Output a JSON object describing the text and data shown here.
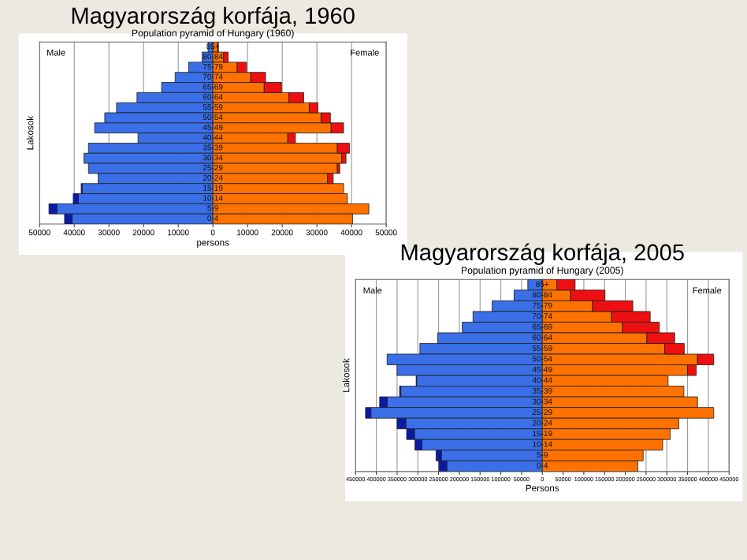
{
  "chart_data": [
    {
      "type": "bar",
      "orientation": "horizontal",
      "stacked": true,
      "title": "Magyarország korfája, 1960",
      "subtitle": "Population pyramid of Hungary (1960)",
      "xlabel": "persons",
      "ylabel": "Lakosok",
      "annotations": [
        "Male",
        "Female"
      ],
      "categories": [
        "85+",
        "80-84",
        "75-79",
        "70-74",
        "65-69",
        "60-64",
        "55-59",
        "50-54",
        "45-49",
        "40-44",
        "35-39",
        "30-34",
        "25-29",
        "20-24",
        "15-19",
        "10-14",
        "5-9",
        "0-4"
      ],
      "series": [
        {
          "color": "#3a6fe8",
          "values": [
            -1400,
            -3100,
            -7000,
            -10900,
            -14800,
            -21900,
            -27800,
            -31200,
            -34100,
            -21600,
            -35900,
            -37200,
            -35900,
            -33100,
            -37700,
            -38800,
            -45000,
            -40600
          ]
        },
        {
          "color": "#0a1aa8",
          "values": [
            null,
            null,
            null,
            null,
            null,
            null,
            null,
            null,
            null,
            null,
            null,
            null,
            null,
            null,
            -300,
            -1500,
            -2300,
            -2200
          ]
        },
        {
          "color": "#ff7200",
          "values": [
            1400,
            3100,
            7000,
            10900,
            14800,
            21900,
            27800,
            31200,
            34100,
            21600,
            35900,
            37200,
            35900,
            33100,
            37700,
            38800,
            45000,
            40300
          ]
        },
        {
          "color": "#ee1010",
          "values": [
            200,
            1300,
            2700,
            4300,
            5000,
            4300,
            2500,
            2700,
            3600,
            2200,
            3500,
            1200,
            700,
            1600,
            null,
            null,
            null,
            null
          ]
        }
      ],
      "xlim": [
        -50000,
        50000
      ],
      "xticks": [
        {
          "value": -50000,
          "label": "50000"
        },
        {
          "value": -40000,
          "label": "40000"
        },
        {
          "value": -30000,
          "label": "30000"
        },
        {
          "value": -20000,
          "label": "20000"
        },
        {
          "value": -10000,
          "label": "10000"
        },
        0,
        10000,
        20000,
        30000,
        40000,
        50000
      ],
      "grid": "x"
    },
    {
      "type": "bar",
      "orientation": "horizontal",
      "stacked": true,
      "title": "Magyarország korfája, 2005",
      "subtitle": "Population pyramid of Hungary (2005)",
      "xlabel": "Persons",
      "ylabel": "Lakosok",
      "annotations": [
        "Male",
        "Female"
      ],
      "categories": [
        "85+",
        "80-84",
        "75-79",
        "70-74",
        "65-69",
        "60-64",
        "55-59",
        "50-54",
        "45-49",
        "40-44",
        "35-39",
        "30-34",
        "25-29",
        "20-24",
        "15-19",
        "10-14",
        "5-9",
        "0-4"
      ],
      "series": [
        {
          "color": "#3a6fe8",
          "values": [
            -35000,
            -68000,
            -121000,
            -167000,
            -193000,
            -252000,
            -295000,
            -374000,
            -350000,
            -303000,
            -341000,
            -374000,
            -413000,
            -329000,
            -308000,
            -290000,
            -243000,
            -230000
          ]
        },
        {
          "color": "#0a1aa8",
          "values": [
            null,
            null,
            null,
            null,
            null,
            null,
            null,
            null,
            null,
            -1000,
            -3000,
            -18000,
            -13000,
            -21000,
            -19000,
            -17000,
            -13000,
            -19000
          ]
        },
        {
          "color": "#ff7200",
          "values": [
            35000,
            68000,
            121000,
            167000,
            193000,
            252000,
            295000,
            374000,
            350000,
            303000,
            341000,
            374000,
            413000,
            329000,
            308000,
            290000,
            243000,
            230000
          ]
        },
        {
          "color": "#ee1010",
          "values": [
            44000,
            83000,
            97000,
            93000,
            89000,
            67000,
            47000,
            39000,
            21000,
            null,
            null,
            null,
            null,
            null,
            null,
            null,
            null,
            null
          ]
        }
      ],
      "xlim": [
        -450000,
        450000
      ],
      "xticks": [
        {
          "value": -450000,
          "label": "450000"
        },
        {
          "value": -400000,
          "label": "400000"
        },
        {
          "value": -350000,
          "label": "350000"
        },
        {
          "value": -300000,
          "label": "300000"
        },
        {
          "value": -250000,
          "label": "250000"
        },
        {
          "value": -200000,
          "label": "200000"
        },
        {
          "value": -150000,
          "label": "150000"
        },
        {
          "value": -100000,
          "label": "100000"
        },
        {
          "value": -50000,
          "label": "50000"
        },
        0,
        50000,
        100000,
        150000,
        200000,
        250000,
        300000,
        350000,
        400000,
        450000
      ],
      "grid": "x"
    }
  ]
}
